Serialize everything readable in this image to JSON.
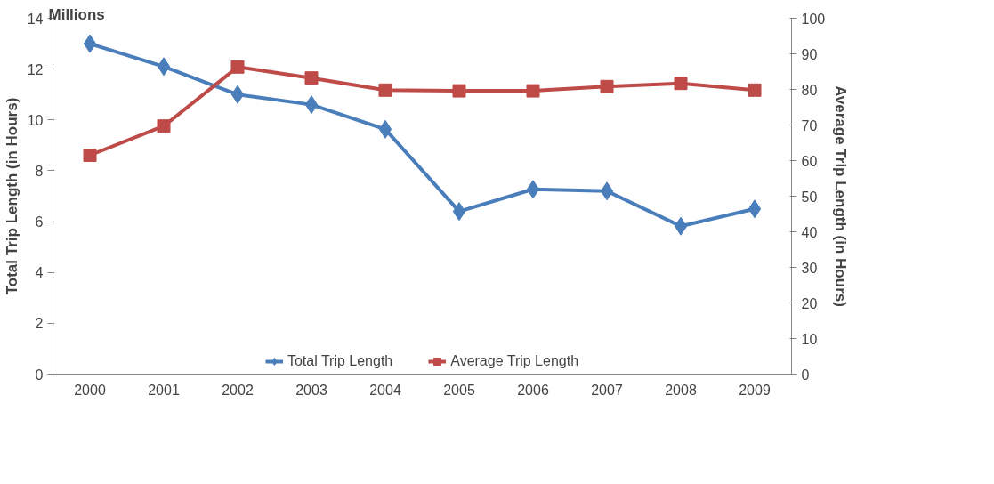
{
  "chart_data": {
    "type": "line",
    "categories": [
      "2000",
      "2001",
      "2002",
      "2003",
      "2004",
      "2005",
      "2006",
      "2007",
      "2008",
      "2009"
    ],
    "ylabel": "Total Trip Length (in Hours)",
    "y2label": "Average Trip Length (in Hours)",
    "annotations": [
      "Millions"
    ],
    "ylim": [
      0,
      14
    ],
    "yticks": [
      0,
      2,
      4,
      6,
      8,
      10,
      12,
      14
    ],
    "y2lim": [
      0,
      100
    ],
    "y2ticks": [
      0,
      10,
      20,
      30,
      40,
      50,
      60,
      70,
      80,
      90,
      100
    ],
    "grid": false,
    "legend": "bottom",
    "line_style": "solid",
    "series": [
      {
        "name": "Total Trip Length",
        "color": "#4a7ebb",
        "marker": "diamond",
        "values": [
          13.0,
          12.1,
          11.0,
          10.6,
          9.63,
          6.4,
          7.27,
          7.2,
          5.82,
          6.5
        ]
      },
      {
        "name": "Average Trip Length",
        "color": "#be4b48",
        "marker": "square",
        "axis": "y2",
        "values": [
          61.5,
          69.7,
          86.3,
          83.2,
          79.8,
          79.6,
          79.6,
          80.8,
          81.7,
          79.8
        ]
      }
    ]
  }
}
